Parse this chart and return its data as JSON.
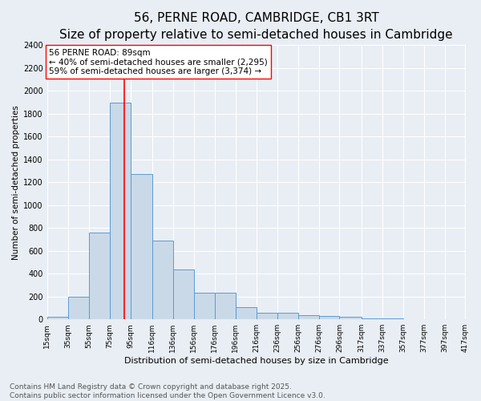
{
  "title": "56, PERNE ROAD, CAMBRIDGE, CB1 3RT",
  "subtitle": "Size of property relative to semi-detached houses in Cambridge",
  "xlabel": "Distribution of semi-detached houses by size in Cambridge",
  "ylabel": "Number of semi-detached properties",
  "bar_edges": [
    15,
    35,
    55,
    75,
    95,
    116,
    136,
    156,
    176,
    196,
    216,
    236,
    256,
    276,
    296,
    317,
    337,
    357,
    377,
    397,
    417
  ],
  "bar_heights": [
    25,
    200,
    760,
    1900,
    1270,
    690,
    435,
    230,
    230,
    105,
    60,
    55,
    35,
    30,
    20,
    10,
    5,
    2,
    1,
    0
  ],
  "bar_color": "#c9d9e8",
  "bar_edge_color": "#5b9bd5",
  "property_line_x": 89,
  "property_line_color": "red",
  "annotation_text": "56 PERNE ROAD: 89sqm\n← 40% of semi-detached houses are smaller (2,295)\n59% of semi-detached houses are larger (3,374) →",
  "annotation_box_color": "white",
  "annotation_box_edge": "red",
  "ylim": [
    0,
    2400
  ],
  "yticks": [
    0,
    200,
    400,
    600,
    800,
    1000,
    1200,
    1400,
    1600,
    1800,
    2000,
    2200,
    2400
  ],
  "tick_labels": [
    "15sqm",
    "35sqm",
    "55sqm",
    "75sqm",
    "95sqm",
    "116sqm",
    "136sqm",
    "156sqm",
    "176sqm",
    "196sqm",
    "216sqm",
    "236sqm",
    "256sqm",
    "276sqm",
    "296sqm",
    "317sqm",
    "337sqm",
    "357sqm",
    "377sqm",
    "397sqm",
    "417sqm"
  ],
  "background_color": "#e8eef4",
  "footer_text": "Contains HM Land Registry data © Crown copyright and database right 2025.\nContains public sector information licensed under the Open Government Licence v3.0.",
  "title_fontsize": 11,
  "subtitle_fontsize": 9,
  "annotation_fontsize": 7.5,
  "footer_fontsize": 6.5,
  "xlabel_fontsize": 8,
  "ylabel_fontsize": 7.5,
  "ytick_fontsize": 7,
  "xtick_fontsize": 6.5
}
